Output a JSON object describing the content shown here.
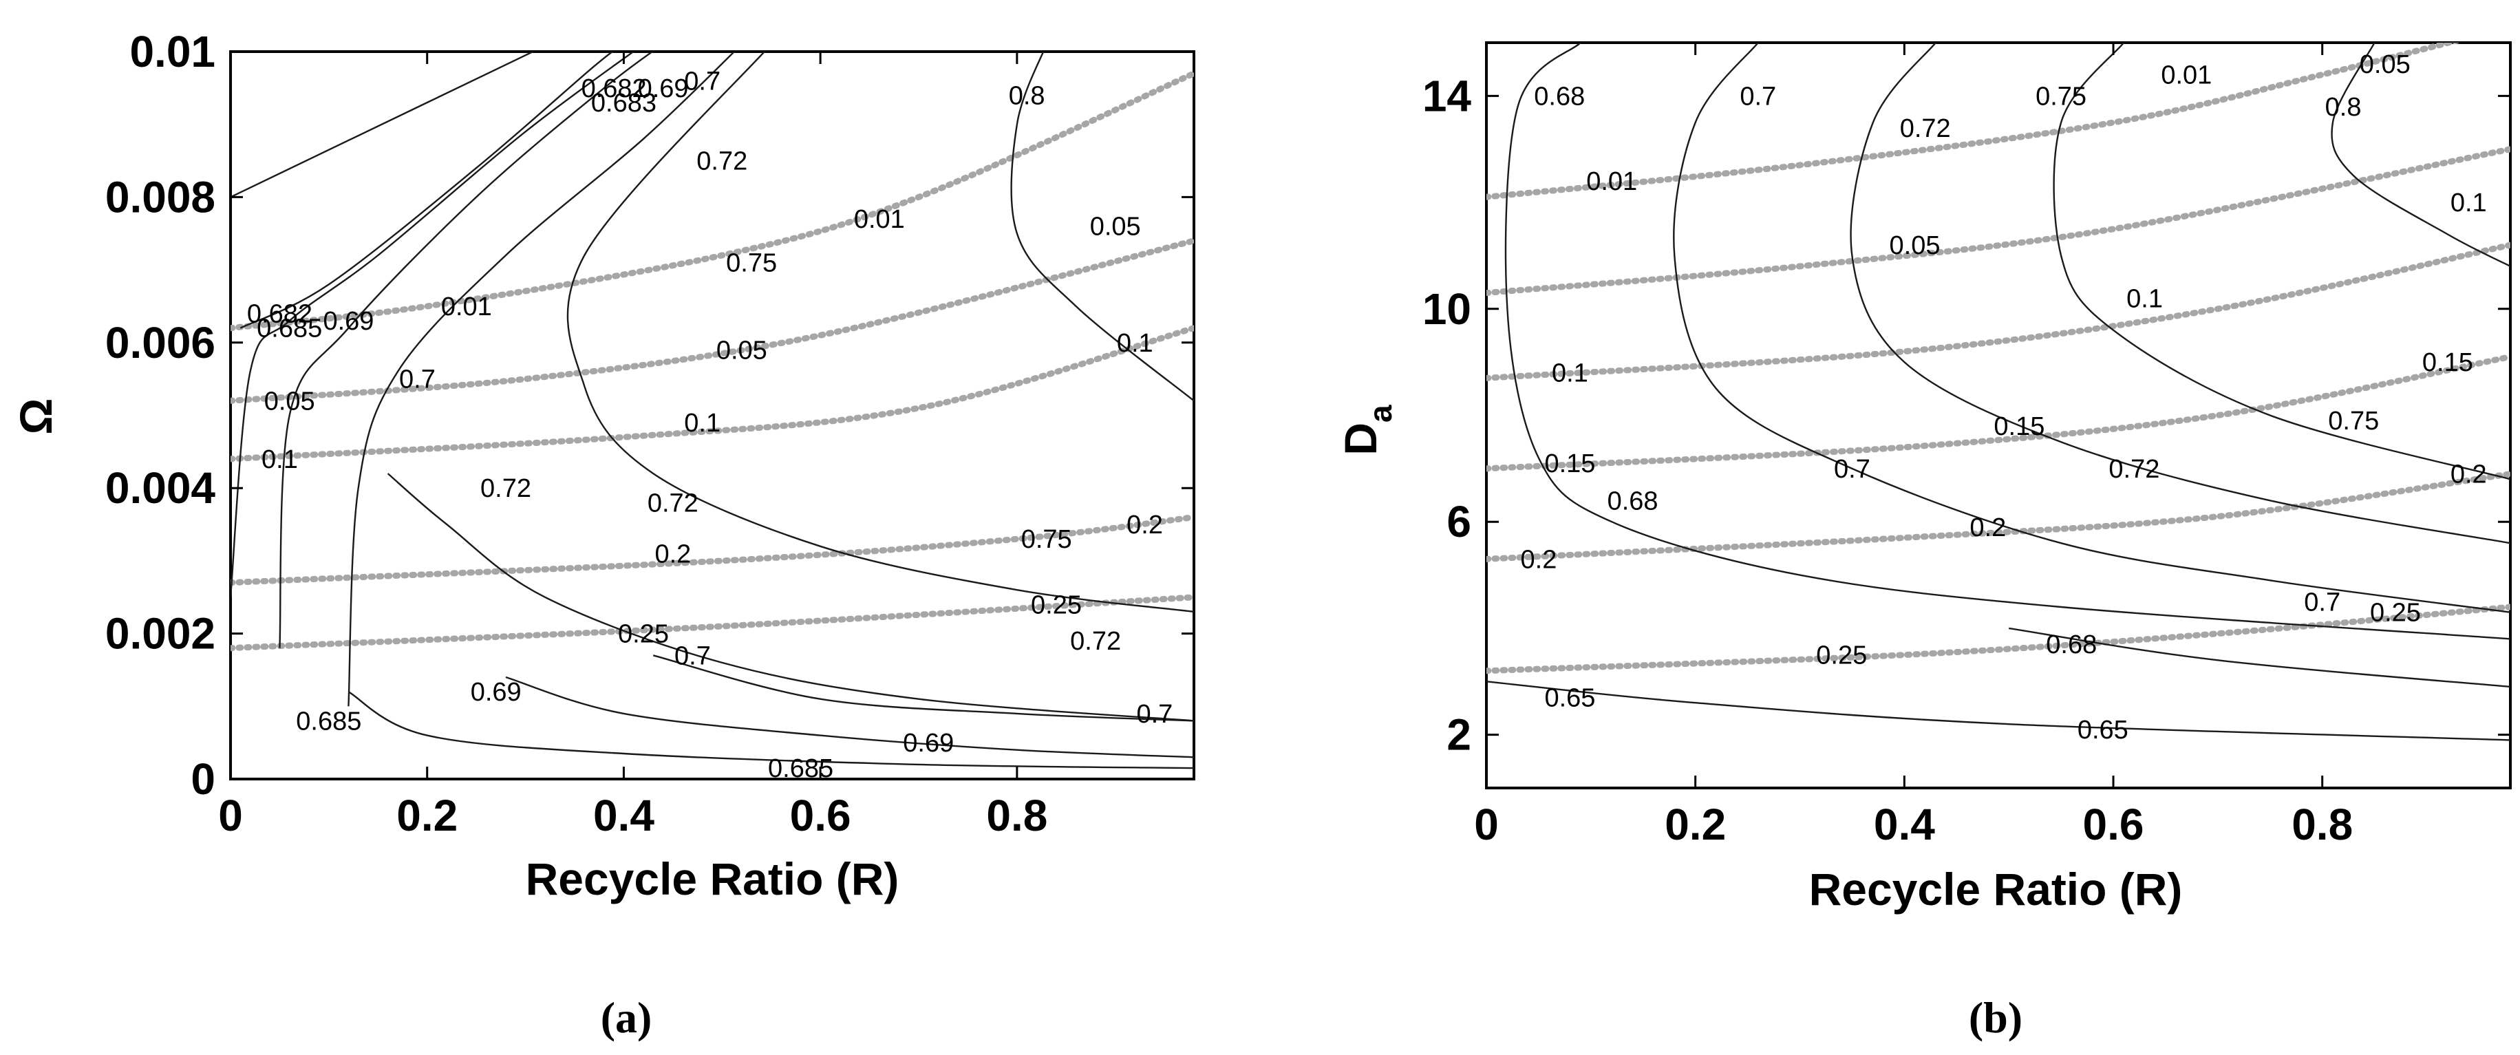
{
  "chart_data": [
    {
      "type": "contour",
      "panel_label": "(a)",
      "xlabel": "Recycle Ratio (R)",
      "ylabel": "Ω",
      "xlim": [
        0,
        0.98
      ],
      "ylim": [
        0,
        0.01
      ],
      "xticks": [
        "0",
        "0.2",
        "0.4",
        "0.6",
        "0.8"
      ],
      "yticks": [
        "0",
        "0.002",
        "0.004",
        "0.006",
        "0.008",
        "0.01"
      ],
      "solid_contours": [
        {
          "level": "0.682",
          "points": [
            [
              0.0,
              0.008
            ],
            [
              0.2,
              0.0093
            ],
            [
              0.4,
              0.0106
            ]
          ]
        },
        {
          "level": "0.683",
          "points": [
            [
              0.01,
              0.0062
            ],
            [
              0.1,
              0.0068
            ],
            [
              0.25,
              0.0084
            ],
            [
              0.37,
              0.0098
            ],
            [
              0.4,
              0.0101
            ]
          ]
        },
        {
          "level": "0.685",
          "points": [
            [
              0.0,
              0.0025
            ],
            [
              0.02,
              0.0056
            ],
            [
              0.06,
              0.0063
            ],
            [
              0.15,
              0.0072
            ],
            [
              0.3,
              0.0089
            ],
            [
              0.42,
              0.0101
            ]
          ]
        },
        {
          "level": "0.69",
          "points": [
            [
              0.05,
              0.0018
            ],
            [
              0.06,
              0.005
            ],
            [
              0.12,
              0.0062
            ],
            [
              0.25,
              0.008
            ],
            [
              0.38,
              0.0095
            ],
            [
              0.45,
              0.0102
            ]
          ]
        },
        {
          "level": "0.7",
          "points": [
            [
              0.12,
              0.001
            ],
            [
              0.13,
              0.004
            ],
            [
              0.17,
              0.0056
            ],
            [
              0.28,
              0.0072
            ],
            [
              0.42,
              0.0088
            ],
            [
              0.52,
              0.0101
            ]
          ]
        },
        {
          "level": "0.72",
          "points": [
            [
              0.16,
              0.0042
            ],
            [
              0.22,
              0.0035
            ],
            [
              0.32,
              0.0025
            ],
            [
              0.5,
              0.0016
            ],
            [
              0.7,
              0.0011
            ],
            [
              0.98,
              0.0008
            ]
          ]
        },
        {
          "level": "0.75",
          "points": [
            [
              0.55,
              0.0101
            ],
            [
              0.36,
              0.0072
            ],
            [
              0.36,
              0.0054
            ],
            [
              0.43,
              0.0042
            ],
            [
              0.6,
              0.0032
            ],
            [
              0.8,
              0.0026
            ],
            [
              0.98,
              0.0023
            ]
          ]
        },
        {
          "level": "0.8",
          "points": [
            [
              0.83,
              0.0101
            ],
            [
              0.8,
              0.009
            ],
            [
              0.8,
              0.0075
            ],
            [
              0.86,
              0.0065
            ],
            [
              0.98,
              0.0052
            ]
          ]
        },
        {
          "level": "0.685",
          "points": [
            [
              0.12,
              0.0012
            ],
            [
              0.2,
              0.0006
            ],
            [
              0.4,
              0.00035
            ],
            [
              0.7,
              0.0002
            ],
            [
              0.98,
              0.00015
            ]
          ]
        },
        {
          "level": "0.69",
          "points": [
            [
              0.28,
              0.0014
            ],
            [
              0.4,
              0.0009
            ],
            [
              0.6,
              0.0006
            ],
            [
              0.8,
              0.0004
            ],
            [
              0.98,
              0.0003
            ]
          ]
        },
        {
          "level": "0.7",
          "points": [
            [
              0.43,
              0.0017
            ],
            [
              0.6,
              0.0011
            ],
            [
              0.8,
              0.0009
            ],
            [
              0.98,
              0.0008
            ]
          ]
        }
      ],
      "dotted_contours": [
        {
          "level": "0.01",
          "points": [
            [
              0.0,
              0.0062
            ],
            [
              0.2,
              0.0065
            ],
            [
              0.5,
              0.0072
            ],
            [
              0.7,
              0.008
            ],
            [
              0.98,
              0.0097
            ]
          ]
        },
        {
          "level": "0.05",
          "points": [
            [
              0.0,
              0.0052
            ],
            [
              0.3,
              0.0055
            ],
            [
              0.6,
              0.0061
            ],
            [
              0.98,
              0.0074
            ]
          ]
        },
        {
          "level": "0.1",
          "points": [
            [
              0.0,
              0.0044
            ],
            [
              0.4,
              0.0047
            ],
            [
              0.7,
              0.0051
            ],
            [
              0.98,
              0.0062
            ]
          ]
        },
        {
          "level": "0.2",
          "points": [
            [
              0.0,
              0.0027
            ],
            [
              0.5,
              0.003
            ],
            [
              0.8,
              0.0033
            ],
            [
              0.98,
              0.0036
            ]
          ]
        },
        {
          "level": "0.25",
          "points": [
            [
              0.0,
              0.0018
            ],
            [
              0.5,
              0.0021
            ],
            [
              0.98,
              0.0025
            ]
          ]
        }
      ],
      "labels_solid": [
        {
          "text": "0.682",
          "x": 0.05,
          "y": 0.0064
        },
        {
          "text": "0.685",
          "x": 0.06,
          "y": 0.0062
        },
        {
          "text": "0.69",
          "x": 0.12,
          "y": 0.0063
        },
        {
          "text": "0.7",
          "x": 0.19,
          "y": 0.0055
        },
        {
          "text": "0.682",
          "x": 0.39,
          "y": 0.0095
        },
        {
          "text": "0.683",
          "x": 0.4,
          "y": 0.0093
        },
        {
          "text": "0.69",
          "x": 0.44,
          "y": 0.0095
        },
        {
          "text": "0.7",
          "x": 0.48,
          "y": 0.0096
        },
        {
          "text": "0.72",
          "x": 0.5,
          "y": 0.0085
        },
        {
          "text": "0.75",
          "x": 0.53,
          "y": 0.0071
        },
        {
          "text": "0.8",
          "x": 0.81,
          "y": 0.0094
        },
        {
          "text": "0.72",
          "x": 0.28,
          "y": 0.004
        },
        {
          "text": "0.72",
          "x": 0.45,
          "y": 0.0038
        },
        {
          "text": "0.75",
          "x": 0.83,
          "y": 0.0033
        },
        {
          "text": "0.72",
          "x": 0.88,
          "y": 0.0019
        },
        {
          "text": "0.7",
          "x": 0.47,
          "y": 0.0017
        },
        {
          "text": "0.69",
          "x": 0.27,
          "y": 0.0012
        },
        {
          "text": "0.685",
          "x": 0.1,
          "y": 0.0008
        },
        {
          "text": "0.69",
          "x": 0.71,
          "y": 0.0005
        },
        {
          "text": "0.685",
          "x": 0.58,
          "y": 0.00015
        },
        {
          "text": "0.7",
          "x": 0.94,
          "y": 0.0009
        }
      ],
      "labels_dotted": [
        {
          "text": "0.01",
          "x": 0.24,
          "y": 0.0065
        },
        {
          "text": "0.01",
          "x": 0.66,
          "y": 0.0077
        },
        {
          "text": "0.05",
          "x": 0.06,
          "y": 0.0052
        },
        {
          "text": "0.05",
          "x": 0.52,
          "y": 0.0059
        },
        {
          "text": "0.05",
          "x": 0.9,
          "y": 0.0076
        },
        {
          "text": "0.1",
          "x": 0.05,
          "y": 0.0044
        },
        {
          "text": "0.1",
          "x": 0.48,
          "y": 0.0049
        },
        {
          "text": "0.1",
          "x": 0.92,
          "y": 0.006
        },
        {
          "text": "0.2",
          "x": 0.45,
          "y": 0.0031
        },
        {
          "text": "0.2",
          "x": 0.93,
          "y": 0.0035
        },
        {
          "text": "0.25",
          "x": 0.42,
          "y": 0.002
        },
        {
          "text": "0.25",
          "x": 0.84,
          "y": 0.0024
        }
      ]
    },
    {
      "type": "contour",
      "panel_label": "(b)",
      "xlabel": "Recycle Ratio (R)",
      "ylabel": "D",
      "ylabel_sub": "a",
      "xlim": [
        0,
        0.98
      ],
      "ylim": [
        1,
        15
      ],
      "xticks": [
        "0",
        "0.2",
        "0.4",
        "0.6",
        "0.8"
      ],
      "yticks": [
        "2",
        "6",
        "10",
        "14"
      ],
      "solid_contours": [
        {
          "level": "0.68",
          "points": [
            [
              0.09,
              15
            ],
            [
              0.03,
              13.8
            ],
            [
              0.02,
              10
            ],
            [
              0.05,
              7.2
            ],
            [
              0.12,
              6.0
            ],
            [
              0.3,
              5.0
            ],
            [
              0.55,
              4.4
            ],
            [
              0.98,
              3.8
            ]
          ]
        },
        {
          "level": "0.7",
          "points": [
            [
              0.26,
              15
            ],
            [
              0.2,
              13.5
            ],
            [
              0.18,
              11
            ],
            [
              0.22,
              8.5
            ],
            [
              0.35,
              7.0
            ],
            [
              0.55,
              5.6
            ],
            [
              0.75,
              4.9
            ],
            [
              0.98,
              4.3
            ]
          ]
        },
        {
          "level": "0.72",
          "points": [
            [
              0.43,
              15
            ],
            [
              0.37,
              13.5
            ],
            [
              0.35,
              11
            ],
            [
              0.4,
              9.0
            ],
            [
              0.55,
              7.5
            ],
            [
              0.75,
              6.4
            ],
            [
              0.98,
              5.6
            ]
          ]
        },
        {
          "level": "0.75",
          "points": [
            [
              0.61,
              15
            ],
            [
              0.55,
              13.5
            ],
            [
              0.55,
              11
            ],
            [
              0.6,
              9.6
            ],
            [
              0.75,
              8.0
            ],
            [
              0.98,
              6.8
            ]
          ]
        },
        {
          "level": "0.8",
          "points": [
            [
              0.85,
              15
            ],
            [
              0.81,
              13.5
            ],
            [
              0.83,
              12.5
            ],
            [
              0.92,
              11.4
            ],
            [
              0.98,
              10.8
            ]
          ]
        },
        {
          "level": "0.68b",
          "points": [
            [
              0.5,
              4.0
            ],
            [
              0.7,
              3.4
            ],
            [
              0.98,
              2.9
            ]
          ]
        },
        {
          "level": "0.65",
          "points": [
            [
              0.0,
              3.0
            ],
            [
              0.2,
              2.6
            ],
            [
              0.5,
              2.2
            ],
            [
              0.98,
              1.9
            ]
          ]
        }
      ],
      "dotted_contours": [
        {
          "level": "0.01",
          "points": [
            [
              0.0,
              12.1
            ],
            [
              0.3,
              12.7
            ],
            [
              0.6,
              13.5
            ],
            [
              0.8,
              14.4
            ],
            [
              0.98,
              15.3
            ]
          ]
        },
        {
          "level": "0.05",
          "points": [
            [
              0.0,
              10.3
            ],
            [
              0.3,
              10.8
            ],
            [
              0.6,
              11.5
            ],
            [
              0.98,
              13.0
            ]
          ]
        },
        {
          "level": "0.1",
          "points": [
            [
              0.0,
              8.7
            ],
            [
              0.4,
              9.2
            ],
            [
              0.7,
              10.0
            ],
            [
              0.98,
              11.2
            ]
          ]
        },
        {
          "level": "0.15",
          "points": [
            [
              0.0,
              7.0
            ],
            [
              0.4,
              7.4
            ],
            [
              0.7,
              8.0
            ],
            [
              0.98,
              9.1
            ]
          ]
        },
        {
          "level": "0.2",
          "points": [
            [
              0.0,
              5.3
            ],
            [
              0.4,
              5.7
            ],
            [
              0.7,
              6.1
            ],
            [
              0.98,
              6.9
            ]
          ]
        },
        {
          "level": "0.25",
          "points": [
            [
              0.0,
              3.2
            ],
            [
              0.4,
              3.5
            ],
            [
              0.7,
              3.9
            ],
            [
              0.98,
              4.4
            ]
          ]
        }
      ],
      "labels_solid": [
        {
          "text": "0.68",
          "x": 0.07,
          "y": 14.0
        },
        {
          "text": "0.7",
          "x": 0.26,
          "y": 14.0
        },
        {
          "text": "0.72",
          "x": 0.42,
          "y": 13.4
        },
        {
          "text": "0.75",
          "x": 0.55,
          "y": 14.0
        },
        {
          "text": "0.8",
          "x": 0.82,
          "y": 13.8
        },
        {
          "text": "0.68",
          "x": 0.14,
          "y": 6.4
        },
        {
          "text": "0.7",
          "x": 0.35,
          "y": 7.0
        },
        {
          "text": "0.72",
          "x": 0.62,
          "y": 7.0
        },
        {
          "text": "0.75",
          "x": 0.83,
          "y": 7.9
        },
        {
          "text": "0.7",
          "x": 0.8,
          "y": 4.5
        },
        {
          "text": "0.68",
          "x": 0.56,
          "y": 3.7
        },
        {
          "text": "0.65",
          "x": 0.08,
          "y": 2.7
        },
        {
          "text": "0.65",
          "x": 0.59,
          "y": 2.1
        }
      ],
      "labels_dotted": [
        {
          "text": "0.01",
          "x": 0.67,
          "y": 14.4
        },
        {
          "text": "0.05",
          "x": 0.86,
          "y": 14.6
        },
        {
          "text": "0.01",
          "x": 0.12,
          "y": 12.4
        },
        {
          "text": "0.05",
          "x": 0.41,
          "y": 11.2
        },
        {
          "text": "0.1",
          "x": 0.63,
          "y": 10.2
        },
        {
          "text": "0.1",
          "x": 0.94,
          "y": 12.0
        },
        {
          "text": "0.1",
          "x": 0.08,
          "y": 8.8
        },
        {
          "text": "0.15",
          "x": 0.51,
          "y": 7.8
        },
        {
          "text": "0.15",
          "x": 0.92,
          "y": 9.0
        },
        {
          "text": "0.15",
          "x": 0.08,
          "y": 7.1
        },
        {
          "text": "0.2",
          "x": 0.48,
          "y": 5.9
        },
        {
          "text": "0.2",
          "x": 0.94,
          "y": 6.9
        },
        {
          "text": "0.2",
          "x": 0.05,
          "y": 5.3
        },
        {
          "text": "0.25",
          "x": 0.34,
          "y": 3.5
        },
        {
          "text": "0.25",
          "x": 0.87,
          "y": 4.3
        }
      ]
    }
  ]
}
